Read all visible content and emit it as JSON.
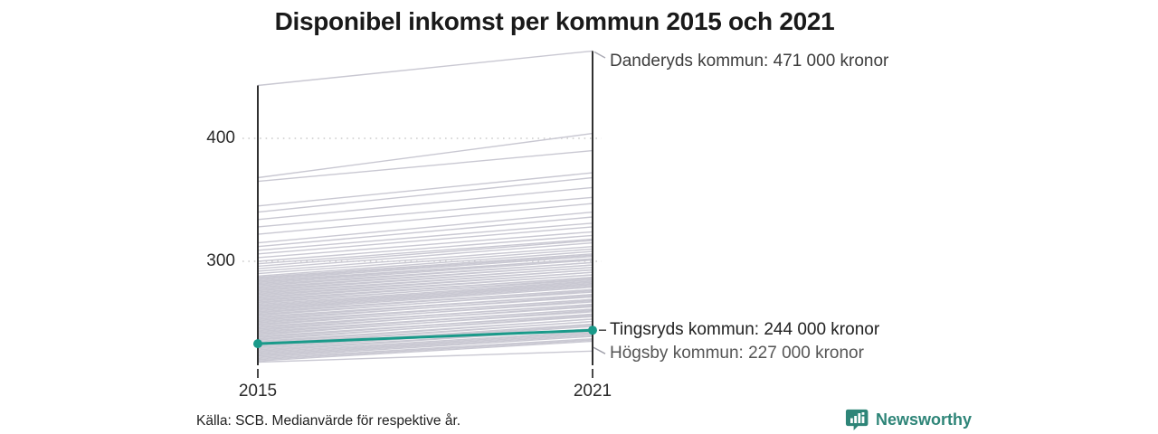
{
  "title": "Disponibel inkomst per kommun 2015 och 2021",
  "source": "Källa: SCB. Medianvärde för respektive år.",
  "brand": {
    "name": "Newsworthy",
    "color": "#2E8578"
  },
  "chart_data": {
    "type": "line",
    "subtype": "slope-chart",
    "title": "Disponibel inkomst per kommun 2015 och 2021",
    "x_categories": [
      "2015",
      "2021"
    ],
    "y_ticks": [
      400,
      300
    ],
    "y_tick_labels": [
      "400",
      "300"
    ],
    "y_unit": "tusen kronor (1000 kronor)",
    "ylim": [
      210,
      480
    ],
    "grid": "dotted horizontal lines at ticks",
    "legend": "none",
    "line_color": "#C9C8D2",
    "grid_color": "#CCCCCC",
    "axis_color": "#1a1a1a",
    "highlight_color": "#1A9A8A",
    "highlight_series": {
      "name": "Tingsryds kommun",
      "values": [
        233,
        244
      ]
    },
    "annotations": [
      {
        "series": "Danderyds kommun",
        "label": "Danderyds kommun: 471 000 kronor",
        "value_2021": 471
      },
      {
        "series": "Tingsryds kommun",
        "label": "Tingsryds kommun: 244 000 kronor",
        "value_2021": 244,
        "highlighted": true
      },
      {
        "series": "Högsby kommun",
        "label": "Högsby kommun: 227 000 kronor",
        "value_2021": 227
      }
    ],
    "background_lines_estimated": true,
    "lines": [
      [
        443,
        471
      ],
      [
        368,
        404
      ],
      [
        365,
        390
      ],
      [
        345,
        372
      ],
      [
        340,
        368
      ],
      [
        334,
        360
      ],
      [
        328,
        352
      ],
      [
        322,
        347
      ],
      [
        315,
        340
      ],
      [
        312,
        336
      ],
      [
        309,
        331
      ],
      [
        306,
        328
      ],
      [
        303,
        324
      ],
      [
        300,
        321
      ],
      [
        298,
        318
      ],
      [
        296,
        317
      ],
      [
        294,
        315
      ],
      [
        292,
        312
      ],
      [
        290,
        310
      ],
      [
        288,
        308
      ],
      [
        287,
        306
      ],
      [
        286,
        305
      ],
      [
        285,
        304
      ],
      [
        284,
        302
      ],
      [
        283,
        302
      ],
      [
        282,
        301
      ],
      [
        281,
        299
      ],
      [
        280,
        299
      ],
      [
        279,
        297
      ],
      [
        278,
        297
      ],
      [
        277,
        295
      ],
      [
        276,
        295
      ],
      [
        275,
        293
      ],
      [
        274,
        293
      ],
      [
        273,
        291
      ],
      [
        272,
        291
      ],
      [
        271,
        289
      ],
      [
        270,
        289
      ],
      [
        269,
        287
      ],
      [
        268,
        287
      ],
      [
        267,
        285
      ],
      [
        266,
        286
      ],
      [
        265,
        284
      ],
      [
        264,
        283
      ],
      [
        263,
        282
      ],
      [
        262,
        281
      ],
      [
        261,
        280
      ],
      [
        260,
        279
      ],
      [
        259,
        277
      ],
      [
        258,
        277
      ],
      [
        257,
        275
      ],
      [
        256,
        276
      ],
      [
        255,
        273
      ],
      [
        254,
        273
      ],
      [
        253,
        271
      ],
      [
        252,
        272
      ],
      [
        251,
        269
      ],
      [
        250,
        269
      ],
      [
        249,
        267
      ],
      [
        248,
        268
      ],
      [
        247,
        265
      ],
      [
        246,
        265
      ],
      [
        245,
        263
      ],
      [
        244,
        264
      ],
      [
        243,
        261
      ],
      [
        242,
        261
      ],
      [
        241,
        259
      ],
      [
        240,
        260
      ],
      [
        239,
        257
      ],
      [
        238,
        257
      ],
      [
        237,
        255
      ],
      [
        236,
        256
      ],
      [
        235,
        253
      ],
      [
        234,
        253
      ],
      [
        233,
        251
      ],
      [
        232,
        251
      ],
      [
        231,
        249
      ],
      [
        230,
        248
      ],
      [
        229,
        247
      ],
      [
        228,
        245
      ],
      [
        227,
        245
      ],
      [
        226,
        243
      ],
      [
        225,
        242
      ],
      [
        224,
        241
      ],
      [
        223,
        240
      ],
      [
        222,
        239
      ],
      [
        221,
        237
      ],
      [
        220,
        236
      ],
      [
        219,
        235
      ],
      [
        218,
        227
      ]
    ]
  }
}
